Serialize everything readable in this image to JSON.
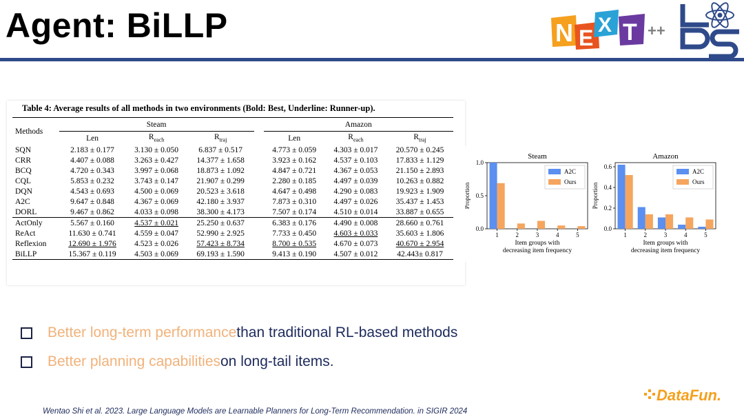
{
  "slide": {
    "title": "Agent: BiLLP",
    "logos": {
      "next": "NExT++",
      "lds": "LDS",
      "datafun": "DataFun."
    },
    "bullets": [
      {
        "highlight": "Better long-term performance",
        "rest": " than traditional RL-based methods"
      },
      {
        "highlight": "Better planning capabilities",
        "rest": " on long-tail items."
      }
    ],
    "citation": "Wentao Shi et al. 2023. Large Language Models are Learnable Planners for Long-Term Recommendation. in SIGIR 2024",
    "colors": {
      "title_bar": "#2f4a8a",
      "highlight": "#f1b27a",
      "body_text": "#1d2a5c"
    }
  },
  "table": {
    "caption": "Table 4: Average results of all methods in two environments (Bold: Best, Underline: Runner-up).",
    "methods_header": "Methods",
    "groups": [
      "Steam",
      "Amazon"
    ],
    "metrics": [
      {
        "base": "Len",
        "sub": ""
      },
      {
        "base": "R",
        "sub": "each"
      },
      {
        "base": "R",
        "sub": "traj"
      }
    ],
    "rows": [
      {
        "method": "SQN",
        "cells": [
          "2.183 ± 0.177",
          "3.130 ± 0.050",
          "6.837 ± 0.517",
          "4.773 ± 0.059",
          "4.303 ± 0.017",
          "20.570 ± 0.245"
        ]
      },
      {
        "method": "CRR",
        "cells": [
          "4.407 ± 0.088",
          "3.263 ± 0.427",
          "14.377 ± 1.658",
          "3.923 ± 0.162",
          "4.537 ± 0.103",
          "17.833 ± 1.129"
        ]
      },
      {
        "method": "BCQ",
        "cells": [
          "4.720 ± 0.343",
          "3.997 ± 0.068",
          "18.873 ± 1.092",
          "4.847 ± 0.721",
          "4.367 ± 0.053",
          "21.150 ± 2.893"
        ]
      },
      {
        "method": "CQL",
        "cells": [
          "5.853 ± 0.232",
          "3.743 ± 0.147",
          "21.907 ± 0.299",
          "2.280 ± 0.185",
          "4.497 ± 0.039",
          "10.263 ± 0.882"
        ]
      },
      {
        "method": "DQN",
        "cells": [
          "4.543 ± 0.693",
          "4.500 ± 0.069",
          "20.523 ± 3.618",
          "4.647 ± 0.498",
          "4.290 ± 0.083",
          "19.923 ± 1.909"
        ]
      },
      {
        "method": "A2C",
        "cells": [
          "9.647 ± 0.848",
          "4.367 ± 0.069",
          "42.180 ± 3.937",
          "7.873 ± 0.310",
          "4.497 ± 0.026",
          "35.437 ± 1.453"
        ]
      },
      {
        "method": "DORL",
        "cells": [
          "9.467 ± 0.862",
          "4.033 ± 0.098",
          "38.300 ± 4.173",
          "7.507 ± 0.174",
          "4.510 ± 0.014",
          "33.887 ± 0.655"
        ]
      },
      {
        "method": "ActOnly",
        "cells": [
          "5.567 ± 0.160",
          "4.537 ± 0.021",
          "25.250 ± 0.637",
          "6.383 ± 0.176",
          "4.490 ± 0.008",
          "28.660 ± 0.761"
        ]
      },
      {
        "method": "ReAct",
        "cells": [
          "11.630 ± 0.741",
          "4.559 ± 0.047",
          "52.990 ± 2.925",
          "7.733 ± 0.450",
          "4.603 ± 0.033",
          "35.603 ± 1.806"
        ]
      },
      {
        "method": "Reflexion",
        "cells": [
          "12.690 ± 1.976",
          "4.523 ± 0.026",
          "57.423 ± 8.734",
          "8.700 ± 0.535",
          "4.670 ± 0.073",
          "40.670 ± 2.954"
        ]
      },
      {
        "method": "BiLLP",
        "cells": [
          "15.367 ± 0.119",
          "4.503 ± 0.069",
          "69.193 ± 1.590",
          "9.413 ± 0.190",
          "4.507 ± 0.012",
          "42.443± 0.817"
        ]
      }
    ],
    "bold_cells": [
      [
        10,
        0
      ],
      [
        8,
        1
      ],
      [
        10,
        2
      ],
      [
        10,
        3
      ],
      [
        9,
        4
      ],
      [
        10,
        5
      ]
    ],
    "underline_cells": [
      [
        9,
        0
      ],
      [
        7,
        1
      ],
      [
        9,
        2
      ],
      [
        9,
        3
      ],
      [
        8,
        4
      ],
      [
        9,
        5
      ]
    ]
  },
  "chart_data": [
    {
      "type": "bar",
      "title": "Steam",
      "xlabel": "Item groups with\ndecreasing item frequency",
      "ylabel": "Proportion",
      "categories": [
        "1",
        "2",
        "3",
        "4",
        "5"
      ],
      "ylim": [
        0,
        1.0
      ],
      "yticks": [
        0.0,
        0.5,
        1.0
      ],
      "series": [
        {
          "name": "A2C",
          "color": "#5b8ff0",
          "values": [
            1.0,
            0.0,
            0.0,
            0.0,
            0.0
          ]
        },
        {
          "name": "Ours",
          "color": "#f5a55e",
          "values": [
            0.69,
            0.08,
            0.12,
            0.05,
            0.04
          ]
        }
      ],
      "legend": "top-right",
      "grid": false
    },
    {
      "type": "bar",
      "title": "Amazon",
      "xlabel": "Item groups with\ndecreasing item frequency",
      "ylabel": "Proportion",
      "categories": [
        "1",
        "2",
        "3",
        "4",
        "5"
      ],
      "ylim": [
        0,
        0.64
      ],
      "yticks": [
        0.0,
        0.2,
        0.4,
        0.6
      ],
      "series": [
        {
          "name": "A2C",
          "color": "#5b8ff0",
          "values": [
            0.62,
            0.21,
            0.11,
            0.04,
            0.02
          ]
        },
        {
          "name": "Ours",
          "color": "#f5a55e",
          "values": [
            0.52,
            0.14,
            0.14,
            0.11,
            0.09
          ]
        }
      ],
      "legend": "top-right",
      "grid": false
    }
  ]
}
